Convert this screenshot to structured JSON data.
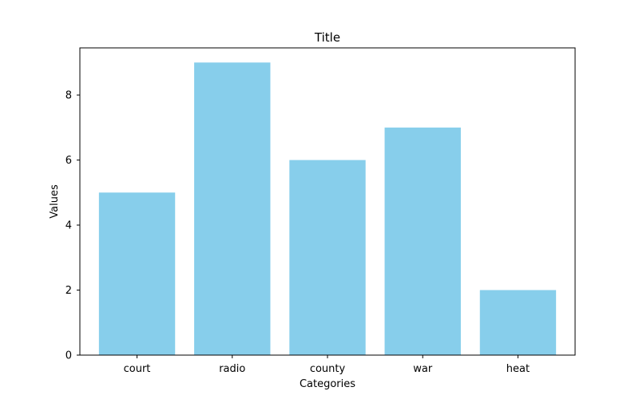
{
  "chart_data": {
    "type": "bar",
    "title": "Title",
    "xlabel": "Categories",
    "ylabel": "Values",
    "categories": [
      "court",
      "radio",
      "county",
      "war",
      "heat"
    ],
    "values": [
      5,
      9,
      6,
      7,
      2
    ],
    "ylim": [
      0,
      9.45
    ],
    "yticks": [
      0,
      2,
      4,
      6,
      8
    ],
    "grid": false,
    "legend": "none",
    "bar_color": "#87ceeb"
  }
}
